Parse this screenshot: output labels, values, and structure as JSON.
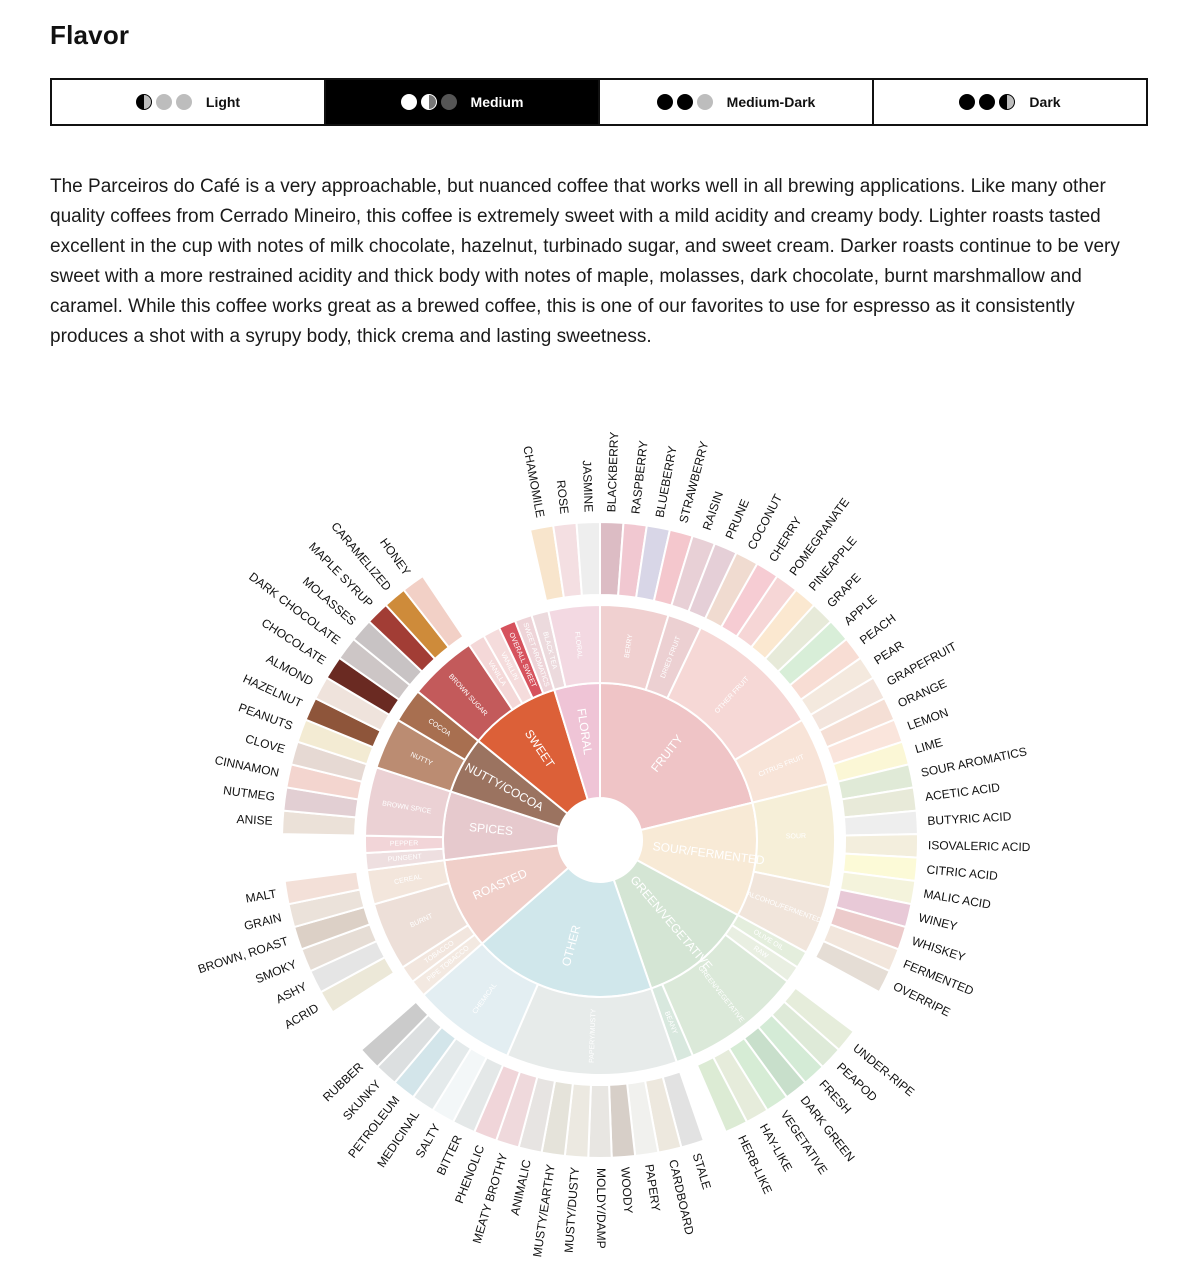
{
  "section_title": "Flavor",
  "roast_tabs": [
    {
      "label": "Light",
      "dots": [
        "half",
        "grey",
        "grey"
      ],
      "active": false
    },
    {
      "label": "Medium",
      "dots": [
        "white",
        "half",
        "dark"
      ],
      "active": true
    },
    {
      "label": "Medium-Dark",
      "dots": [
        "black",
        "black",
        "grey"
      ],
      "active": false
    },
    {
      "label": "Dark",
      "dots": [
        "black",
        "black",
        "half"
      ],
      "active": false
    }
  ],
  "description": "The Parceiros do Café is a very approachable, but nuanced coffee that works well in all brewing applications. Like many other quality coffees from Cerrado Mineiro, this coffee is extremely sweet with a mild acidity and creamy body. Lighter roasts tasted excellent in the cup with notes of milk chocolate, hazelnut, turbinado sugar, and sweet cream. Darker roasts continue to be very sweet with a more restrained acidity and thick body with notes of maple, molasses, dark chocolate, burnt marshmallow and caramel. While this coffee works great as a brewed coffee, this is one of our favorites to use for espresso as it consistently produces a shot with a syrupy body, thick crema and lasting sweetness.",
  "wheel": {
    "categories": [
      {
        "name": "FRUITY",
        "color": "#efc4c6",
        "subs": [
          {
            "name": "BERRY",
            "color": "#f0d0d0",
            "leaves": [
              [
                "BLACKBERRY",
                "#dcbcc4"
              ],
              [
                "RASPBERRY",
                "#f1c8d1"
              ],
              [
                "BLUEBERRY",
                "#d8d6e7"
              ],
              [
                "STRAWBERRY",
                "#f4c7cd"
              ]
            ]
          },
          {
            "name": "DRIED FRUIT",
            "color": "#ecd0d2",
            "leaves": [
              [
                "RAISIN",
                "#e8d0d6"
              ],
              [
                "PRUNE",
                "#e5cfd7"
              ]
            ]
          },
          {
            "name": "OTHER FRUIT",
            "color": "#f6d8d6",
            "leaves": [
              [
                "COCONUT",
                "#f0dbd0"
              ],
              [
                "CHERRY",
                "#f6ccd3"
              ],
              [
                "POMEGRANATE",
                "#f6d6d6"
              ],
              [
                "PINEAPPLE",
                "#fbe8d0"
              ],
              [
                "GRAPE",
                "#e7ead9"
              ],
              [
                "APPLE",
                "#d8eed8"
              ],
              [
                "PEACH",
                "#f8ddd4"
              ],
              [
                "PEAR",
                "#f4e9de"
              ]
            ]
          },
          {
            "name": "CITRUS FRUIT",
            "color": "#f8e4d8",
            "leaves": [
              [
                "GRAPEFRUIT",
                "#f3e5dd"
              ],
              [
                "ORANGE",
                "#f5dfd5"
              ],
              [
                "LEMON",
                "#fae5dc"
              ],
              [
                "LIME",
                "#fbf7d6"
              ]
            ]
          }
        ]
      },
      {
        "name": "SOUR/FERMENTED",
        "color": "#f8ead6",
        "subs": [
          {
            "name": "SOUR",
            "color": "#f6efd8",
            "leaves": [
              [
                "SOUR AROMATICS",
                "#e0ead7"
              ],
              [
                "ACETIC ACID",
                "#e8ead9"
              ],
              [
                "BUTYRIC ACID",
                "#eeeeee"
              ],
              [
                "ISOVALERIC ACID",
                "#f3eedd"
              ],
              [
                "CITRIC ACID",
                "#fcfad7"
              ],
              [
                "MALIC ACID",
                "#f4f3dc"
              ]
            ]
          },
          {
            "name": "ALCOHOL/FERMENTED",
            "color": "#f1e5db",
            "leaves": [
              [
                "WINEY",
                "#e8c9d7"
              ],
              [
                "WHISKEY",
                "#eccbcb"
              ],
              [
                "FERMENTED",
                "#f2e6dc"
              ],
              [
                "OVERRIPE",
                "#e5ddd5"
              ]
            ]
          }
        ]
      },
      {
        "name": "GREEN/VEGETATIVE",
        "color": "#d4e5d4",
        "subs": [
          {
            "name": "OLIVE OIL",
            "color": "#e4eedd",
            "leaves": []
          },
          {
            "name": "RAW",
            "color": "#e9efe2",
            "leaves": []
          },
          {
            "name": "GREEN/VEGETATIVE",
            "color": "#dbe9d9",
            "leaves": [
              [
                "UNDER-RIPE",
                "#e6eddb"
              ],
              [
                "PEAPOD",
                "#deead8"
              ],
              [
                "FRESH",
                "#d4ebd6"
              ],
              [
                "DARK GREEN",
                "#c8dfcb"
              ],
              [
                "VEGETATIVE",
                "#d6ecd5"
              ],
              [
                "HAY-LIKE",
                "#e6ecdb"
              ],
              [
                "HERB-LIKE",
                "#dcebd4"
              ]
            ]
          },
          {
            "name": "BEANY",
            "color": "#d8e8de",
            "leaves": []
          }
        ]
      },
      {
        "name": "OTHER",
        "color": "#d0e7eb",
        "subs": [
          {
            "name": "PAPERY/MUSTY",
            "color": "#e7ebea",
            "leaves": [
              [
                "STALE",
                "#e2e2e2"
              ],
              [
                "CARDBOARD",
                "#ede8de"
              ],
              [
                "PAPERY",
                "#f1f1ee"
              ],
              [
                "WOODY",
                "#d7cfc8"
              ],
              [
                "MOLDY/DAMP",
                "#e8e6e2"
              ],
              [
                "MUSTY/DUSTY",
                "#ece9e1"
              ],
              [
                "MUSTY/EARTHY",
                "#e5e3da"
              ],
              [
                "ANIMALIC",
                "#e7e4e2"
              ],
              [
                "MEATY BROTHY",
                "#efd9dc"
              ],
              [
                "PHENOLIC",
                "#f0d5d9"
              ]
            ]
          },
          {
            "name": "CHEMICAL",
            "color": "#e3eef2",
            "leaves": [
              [
                "BITTER",
                "#e4e8e8"
              ],
              [
                "SALTY",
                "#f3f7f8"
              ],
              [
                "MEDICINAL",
                "#e4eaeb"
              ],
              [
                "PETROLEUM",
                "#d3e5ea"
              ],
              [
                "SKUNKY",
                "#dcdfe0"
              ],
              [
                "RUBBER",
                "#cbcbcb"
              ]
            ]
          }
        ]
      },
      {
        "name": "ROASTED",
        "color": "#f0cfc9",
        "subs": [
          {
            "name": "PIPE TOBACCO",
            "color": "#f3e9e1",
            "leaves": []
          },
          {
            "name": "TOBACCO",
            "color": "#f2e6de",
            "leaves": []
          },
          {
            "name": "BURNT",
            "color": "#eddfd8",
            "leaves": [
              [
                "ACRID",
                "#ece8d8"
              ],
              [
                "ASHY",
                "#e5e5e5"
              ],
              [
                "SMOKY",
                "#e6ddd5"
              ],
              [
                "BROWN, ROAST",
                "#dcd0c6"
              ]
            ]
          },
          {
            "name": "CEREAL",
            "color": "#f3e6dc",
            "leaves": [
              [
                "GRAIN",
                "#ebe2da"
              ],
              [
                "MALT",
                "#f3e0d8"
              ]
            ]
          }
        ]
      },
      {
        "name": "SPICES",
        "color": "#e6c9cd",
        "subs": [
          {
            "name": "PUNGENT",
            "color": "#eedfe0",
            "leaves": []
          },
          {
            "name": "PEPPER",
            "color": "#f2d5d8",
            "leaves": []
          },
          {
            "name": "BROWN SPICE",
            "color": "#ebd1d4",
            "leaves": [
              [
                "ANISE",
                "#ebe1d8"
              ],
              [
                "NUTMEG",
                "#e2cfd3"
              ],
              [
                "CINNAMON",
                "#f3d5cf"
              ],
              [
                "CLOVE",
                "#e6d9d3"
              ]
            ]
          }
        ]
      },
      {
        "name": "NUTTY/COCOA",
        "color": "#9b7360",
        "subs": [
          {
            "name": "NUTTY",
            "color": "#bb8c72",
            "leaves": [
              [
                "PEANUTS",
                "#f3ebd3"
              ],
              [
                "HAZELNUT",
                "#8e553a"
              ],
              [
                "ALMOND",
                "#efe3dc"
              ]
            ]
          },
          {
            "name": "COCOA",
            "color": "#a86f50",
            "leaves": [
              [
                "CHOCOLATE",
                "#6a2a22"
              ],
              [
                "DARK CHOCOLATE",
                "#cdc6c6"
              ]
            ]
          }
        ]
      },
      {
        "name": "SWEET",
        "color": "#dc6038",
        "subs": [
          {
            "name": "BROWN SUGAR",
            "color": "#c35a5b",
            "leaves": [
              [
                "MOLASSES",
                "#c8c3c4"
              ],
              [
                "MAPLE SYRUP",
                "#a23d35"
              ],
              [
                "CARAMELIZED",
                "#ce8b3a"
              ],
              [
                "HONEY",
                "#f2d0c6"
              ]
            ]
          },
          {
            "name": "VANILLA",
            "color": "#f4d8d8",
            "leaves": []
          },
          {
            "name": "VANILLIN",
            "color": "#f5dcdc",
            "leaves": []
          },
          {
            "name": "OVERALL SWEET",
            "color": "#d6525d",
            "leaves": []
          },
          {
            "name": "SWEET AROMATICS",
            "color": "#eed4d8",
            "leaves": []
          }
        ]
      },
      {
        "name": "FLORAL",
        "color": "#efc4d6",
        "subs": [
          {
            "name": "BLACK TEA",
            "color": "#ecdadd",
            "leaves": []
          },
          {
            "name": "FLORAL",
            "color": "#f3d9e2",
            "leaves": [
              [
                "CHAMOMILE",
                "#f8e5cc"
              ],
              [
                "ROSE",
                "#f4dfe2"
              ],
              [
                "JASMINE",
                "#eeeeee"
              ]
            ]
          }
        ]
      }
    ]
  }
}
